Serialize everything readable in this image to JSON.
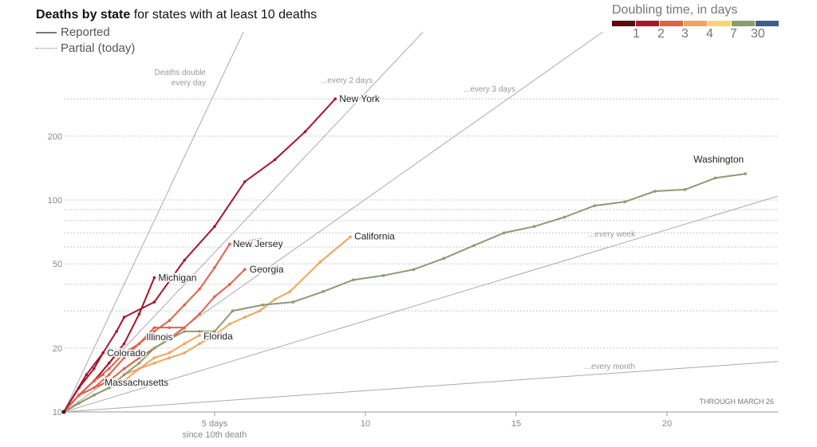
{
  "header": {
    "title_bold": "Deaths by state",
    "title_rest": " for states with at least 10 deaths",
    "legend_reported": "Reported",
    "legend_partial": "Partial (today)"
  },
  "doubling_legend": {
    "title": "Doubling time, in days",
    "colors": [
      "#5a0a0f",
      "#b0132e",
      "#e2604a",
      "#f1a35e",
      "#f5d57a",
      "#8d9b72",
      "#3e5f8a"
    ],
    "tick_labels": [
      "1",
      "2",
      "3",
      "4",
      "7",
      "30"
    ]
  },
  "chart_data": {
    "type": "line",
    "title": "Deaths by state for states with at least 10 deaths",
    "xlabel": "5 days since 10th death",
    "ylabel": "",
    "y_scale": "log",
    "xlim": [
      0,
      24
    ],
    "ylim": [
      10,
      380
    ],
    "x_ticks": [
      5,
      10,
      15,
      20
    ],
    "x_tick_labels": [
      "5 days",
      "10",
      "15",
      "20"
    ],
    "x_tick_sublabel": "since 10th death",
    "y_ticks": [
      10,
      20,
      50,
      100,
      200
    ],
    "y_tick_labels": [
      "10",
      "20",
      "50",
      "100",
      "200"
    ],
    "y_gridlines": [
      20,
      30,
      40,
      50,
      60,
      70,
      80,
      90,
      100,
      200,
      300
    ],
    "grid": true,
    "note": "THROUGH MARCH 26",
    "reference_lines": [
      {
        "label_lines": [
          "Deaths double",
          "every day"
        ],
        "doubling_days": 1
      },
      {
        "label_lines": [
          "...every 2 days"
        ],
        "doubling_days": 2
      },
      {
        "label_lines": [
          "...every 3 days"
        ],
        "doubling_days": 3
      },
      {
        "label_lines": [
          "...every week"
        ],
        "doubling_days": 7
      },
      {
        "label_lines": [
          "...every month"
        ],
        "doubling_days": 30
      }
    ],
    "series": [
      {
        "name": "New York",
        "label": "New York",
        "color": "#a8132d",
        "x": [
          0,
          0.75,
          1.3,
          1.75,
          2,
          3,
          4,
          5,
          6,
          7,
          8,
          9
        ],
        "y": [
          10,
          15,
          19,
          24,
          28,
          33,
          52,
          75,
          122,
          155,
          210,
          300
        ],
        "label_pos": "right"
      },
      {
        "name": "Washington",
        "label": "Washington",
        "color": "#8d9b72",
        "x": [
          0,
          0.5,
          1,
          1.5,
          2,
          2.5,
          3,
          3.5,
          4,
          4.5,
          5,
          5.6,
          6.6,
          7.6,
          8.6,
          9.6,
          10.6,
          11.6,
          12.6,
          13.6,
          14.6,
          15.6,
          16.6,
          17.6,
          18.6,
          19.6,
          20.6,
          21.6,
          22.6
        ],
        "y": [
          10,
          11,
          12,
          13,
          15,
          17,
          20,
          22,
          24,
          24,
          24,
          30,
          32,
          33,
          37,
          42,
          44,
          47,
          53,
          61,
          70,
          75,
          83,
          94,
          98,
          110,
          112,
          127,
          133
        ],
        "label_pos": "above"
      },
      {
        "name": "California",
        "label": "California",
        "color": "#f1a35e",
        "x": [
          0,
          1,
          1.5,
          2,
          2.5,
          3,
          3.5,
          4,
          4.5,
          5,
          5.5,
          6,
          6.5,
          7,
          7.5,
          8.5,
          9.5
        ],
        "y": [
          10,
          12,
          13,
          14,
          16,
          17,
          18,
          19,
          21,
          23,
          26,
          28,
          30,
          34,
          37,
          51,
          67
        ],
        "label_pos": "right"
      },
      {
        "name": "New Jersey",
        "label": "New Jersey",
        "color": "#e2604a",
        "x": [
          0,
          0.5,
          1,
          1.5,
          2,
          2.5,
          3,
          3.5,
          4,
          4.5,
          5,
          5.5
        ],
        "y": [
          10,
          12,
          14,
          16,
          19,
          21,
          24,
          27,
          32,
          38,
          48,
          62
        ],
        "label_pos": "right"
      },
      {
        "name": "New Jersey partial",
        "label": "",
        "color": "#e2604a",
        "dotted": true,
        "x": [
          5.5,
          6.6
        ],
        "y": [
          62,
          66
        ]
      },
      {
        "name": "Georgia",
        "label": "Georgia",
        "color": "#e2604a",
        "x": [
          0,
          0.5,
          1,
          1.5,
          2,
          2.5,
          3,
          3.5,
          4,
          4.5,
          5,
          5.5,
          6
        ],
        "y": [
          10,
          12,
          13,
          14,
          16,
          18,
          20,
          22,
          25,
          29,
          35,
          40,
          47
        ],
        "label_pos": "right"
      },
      {
        "name": "Michigan",
        "label": "Michigan",
        "color": "#a8132d",
        "x": [
          0,
          0.5,
          1,
          1.5,
          2,
          2.5,
          3
        ],
        "y": [
          10,
          12,
          14,
          17,
          21,
          29,
          43
        ],
        "label_pos": "right"
      },
      {
        "name": "Colorado",
        "label": "Colorado",
        "color": "#a8132d",
        "x": [
          0,
          0.5,
          1,
          1.3
        ],
        "y": [
          10,
          13,
          16,
          19
        ],
        "label_pos": "right"
      },
      {
        "name": "Illinois",
        "label": "Illinois",
        "color": "#e2604a",
        "x": [
          0,
          0.5,
          1,
          1.5,
          2,
          2.5,
          3,
          3.5,
          4
        ],
        "y": [
          10,
          12,
          13,
          15,
          18,
          21,
          25,
          25,
          25
        ],
        "label_pos": "below-left"
      },
      {
        "name": "Florida",
        "label": "Florida",
        "color": "#f1a35e",
        "x": [
          0,
          0.5,
          1,
          1.5,
          2,
          2.5,
          3,
          3.5,
          4,
          4.5
        ],
        "y": [
          10,
          11,
          12,
          13,
          15,
          16,
          18,
          19,
          21,
          23
        ],
        "label_pos": "right"
      },
      {
        "name": "Massachusetts",
        "label": "Massachusetts",
        "color": "#e2604a",
        "x": [
          0,
          0.5,
          1,
          1.3
        ],
        "y": [
          10,
          12,
          14,
          15
        ],
        "label_pos": "right"
      }
    ]
  }
}
